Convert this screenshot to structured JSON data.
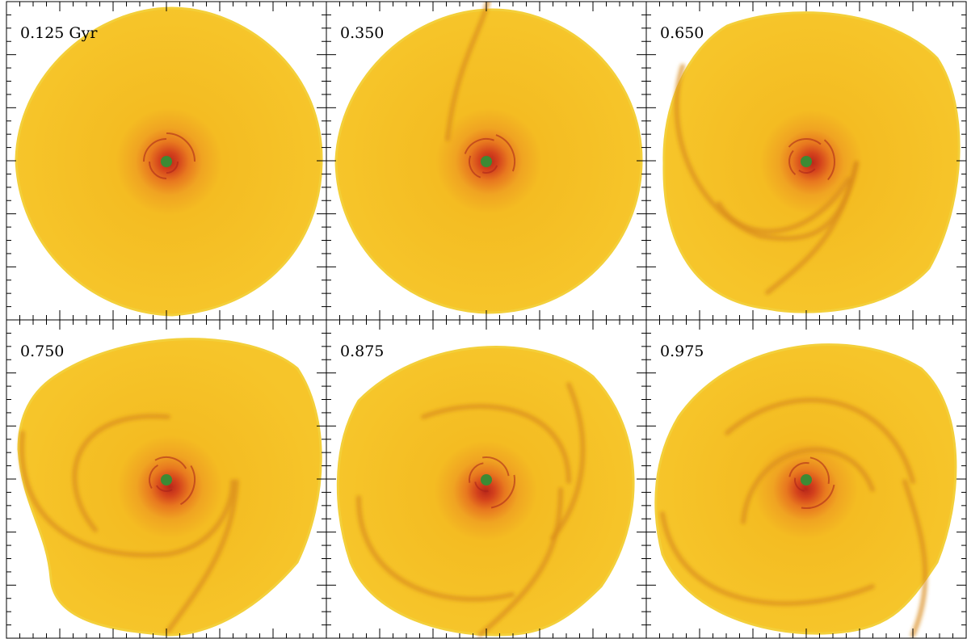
{
  "panels": [
    {
      "label": "0.125 Gyr"
    },
    {
      "label": "0.350"
    },
    {
      "label": "0.650"
    },
    {
      "label": "0.750"
    },
    {
      "label": "0.875"
    },
    {
      "label": "0.975"
    }
  ]
}
